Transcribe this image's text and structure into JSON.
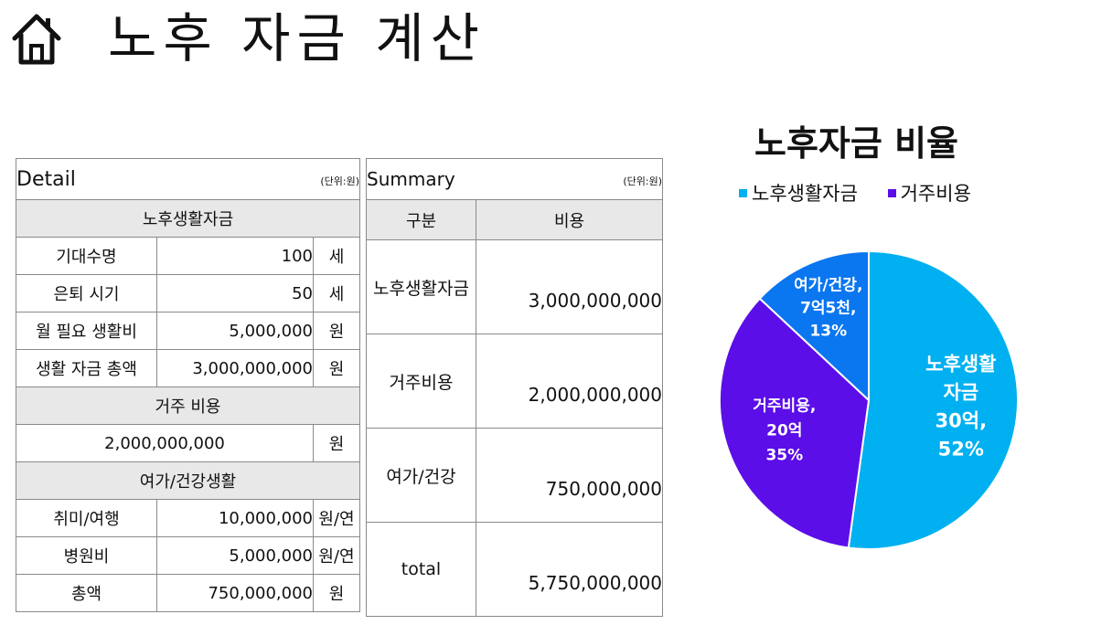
{
  "page": {
    "title": "노후 자금 계산"
  },
  "detail": {
    "title": "Detail",
    "unit_note": "(단위:원)",
    "section_living": "노후생활자금",
    "rows_living": [
      {
        "label": "기대수명",
        "value": "100",
        "unit": "세"
      },
      {
        "label": "은퇴 시기",
        "value": "50",
        "unit": "세"
      },
      {
        "label": "월 필요 생활비",
        "value": "5,000,000",
        "unit": "원"
      },
      {
        "label": "생활 자금 총액",
        "value": "3,000,000,000",
        "unit": "원"
      }
    ],
    "section_housing": "거주 비용",
    "housing": {
      "value": "2,000,000,000",
      "unit": "원"
    },
    "section_leisure": "여가/건강생활",
    "rows_leisure": [
      {
        "label": "취미/여행",
        "value": "10,000,000",
        "unit": "원/연"
      },
      {
        "label": "병원비",
        "value": "5,000,000",
        "unit": "원/연"
      },
      {
        "label": "총액",
        "value": "750,000,000",
        "unit": "원"
      }
    ]
  },
  "summary": {
    "title": "Summary",
    "unit_note": "(단위:원)",
    "col_category": "구분",
    "col_cost": "비용",
    "rows": [
      {
        "label": "노후생활자금",
        "value": "3,000,000,000"
      },
      {
        "label": "거주비용",
        "value": "2,000,000,000"
      },
      {
        "label": "여가/건강",
        "value": "750,000,000"
      },
      {
        "label": "total",
        "value": "5,750,000,000"
      }
    ]
  },
  "chart_data": {
    "type": "pie",
    "title": "노후자금 비율",
    "legend": [
      "노후생활자금",
      "거주비용"
    ],
    "legend_position": "top",
    "slices": [
      {
        "name": "노후생활자금",
        "value": 3000000000,
        "percent": 52,
        "label_lines": [
          "노후생활",
          "자금",
          "30억,",
          "52%"
        ],
        "color": "#00b0f0"
      },
      {
        "name": "거주비용",
        "value": 2000000000,
        "percent": 35,
        "label_lines": [
          "거주비용,",
          "20억",
          "35%"
        ],
        "color": "#5b0ee8"
      },
      {
        "name": "여가/건강",
        "value": 750000000,
        "percent": 13,
        "label_lines": [
          "여가/건강,",
          "7억5천,",
          "13%"
        ],
        "color": "#0a76f0"
      }
    ]
  }
}
